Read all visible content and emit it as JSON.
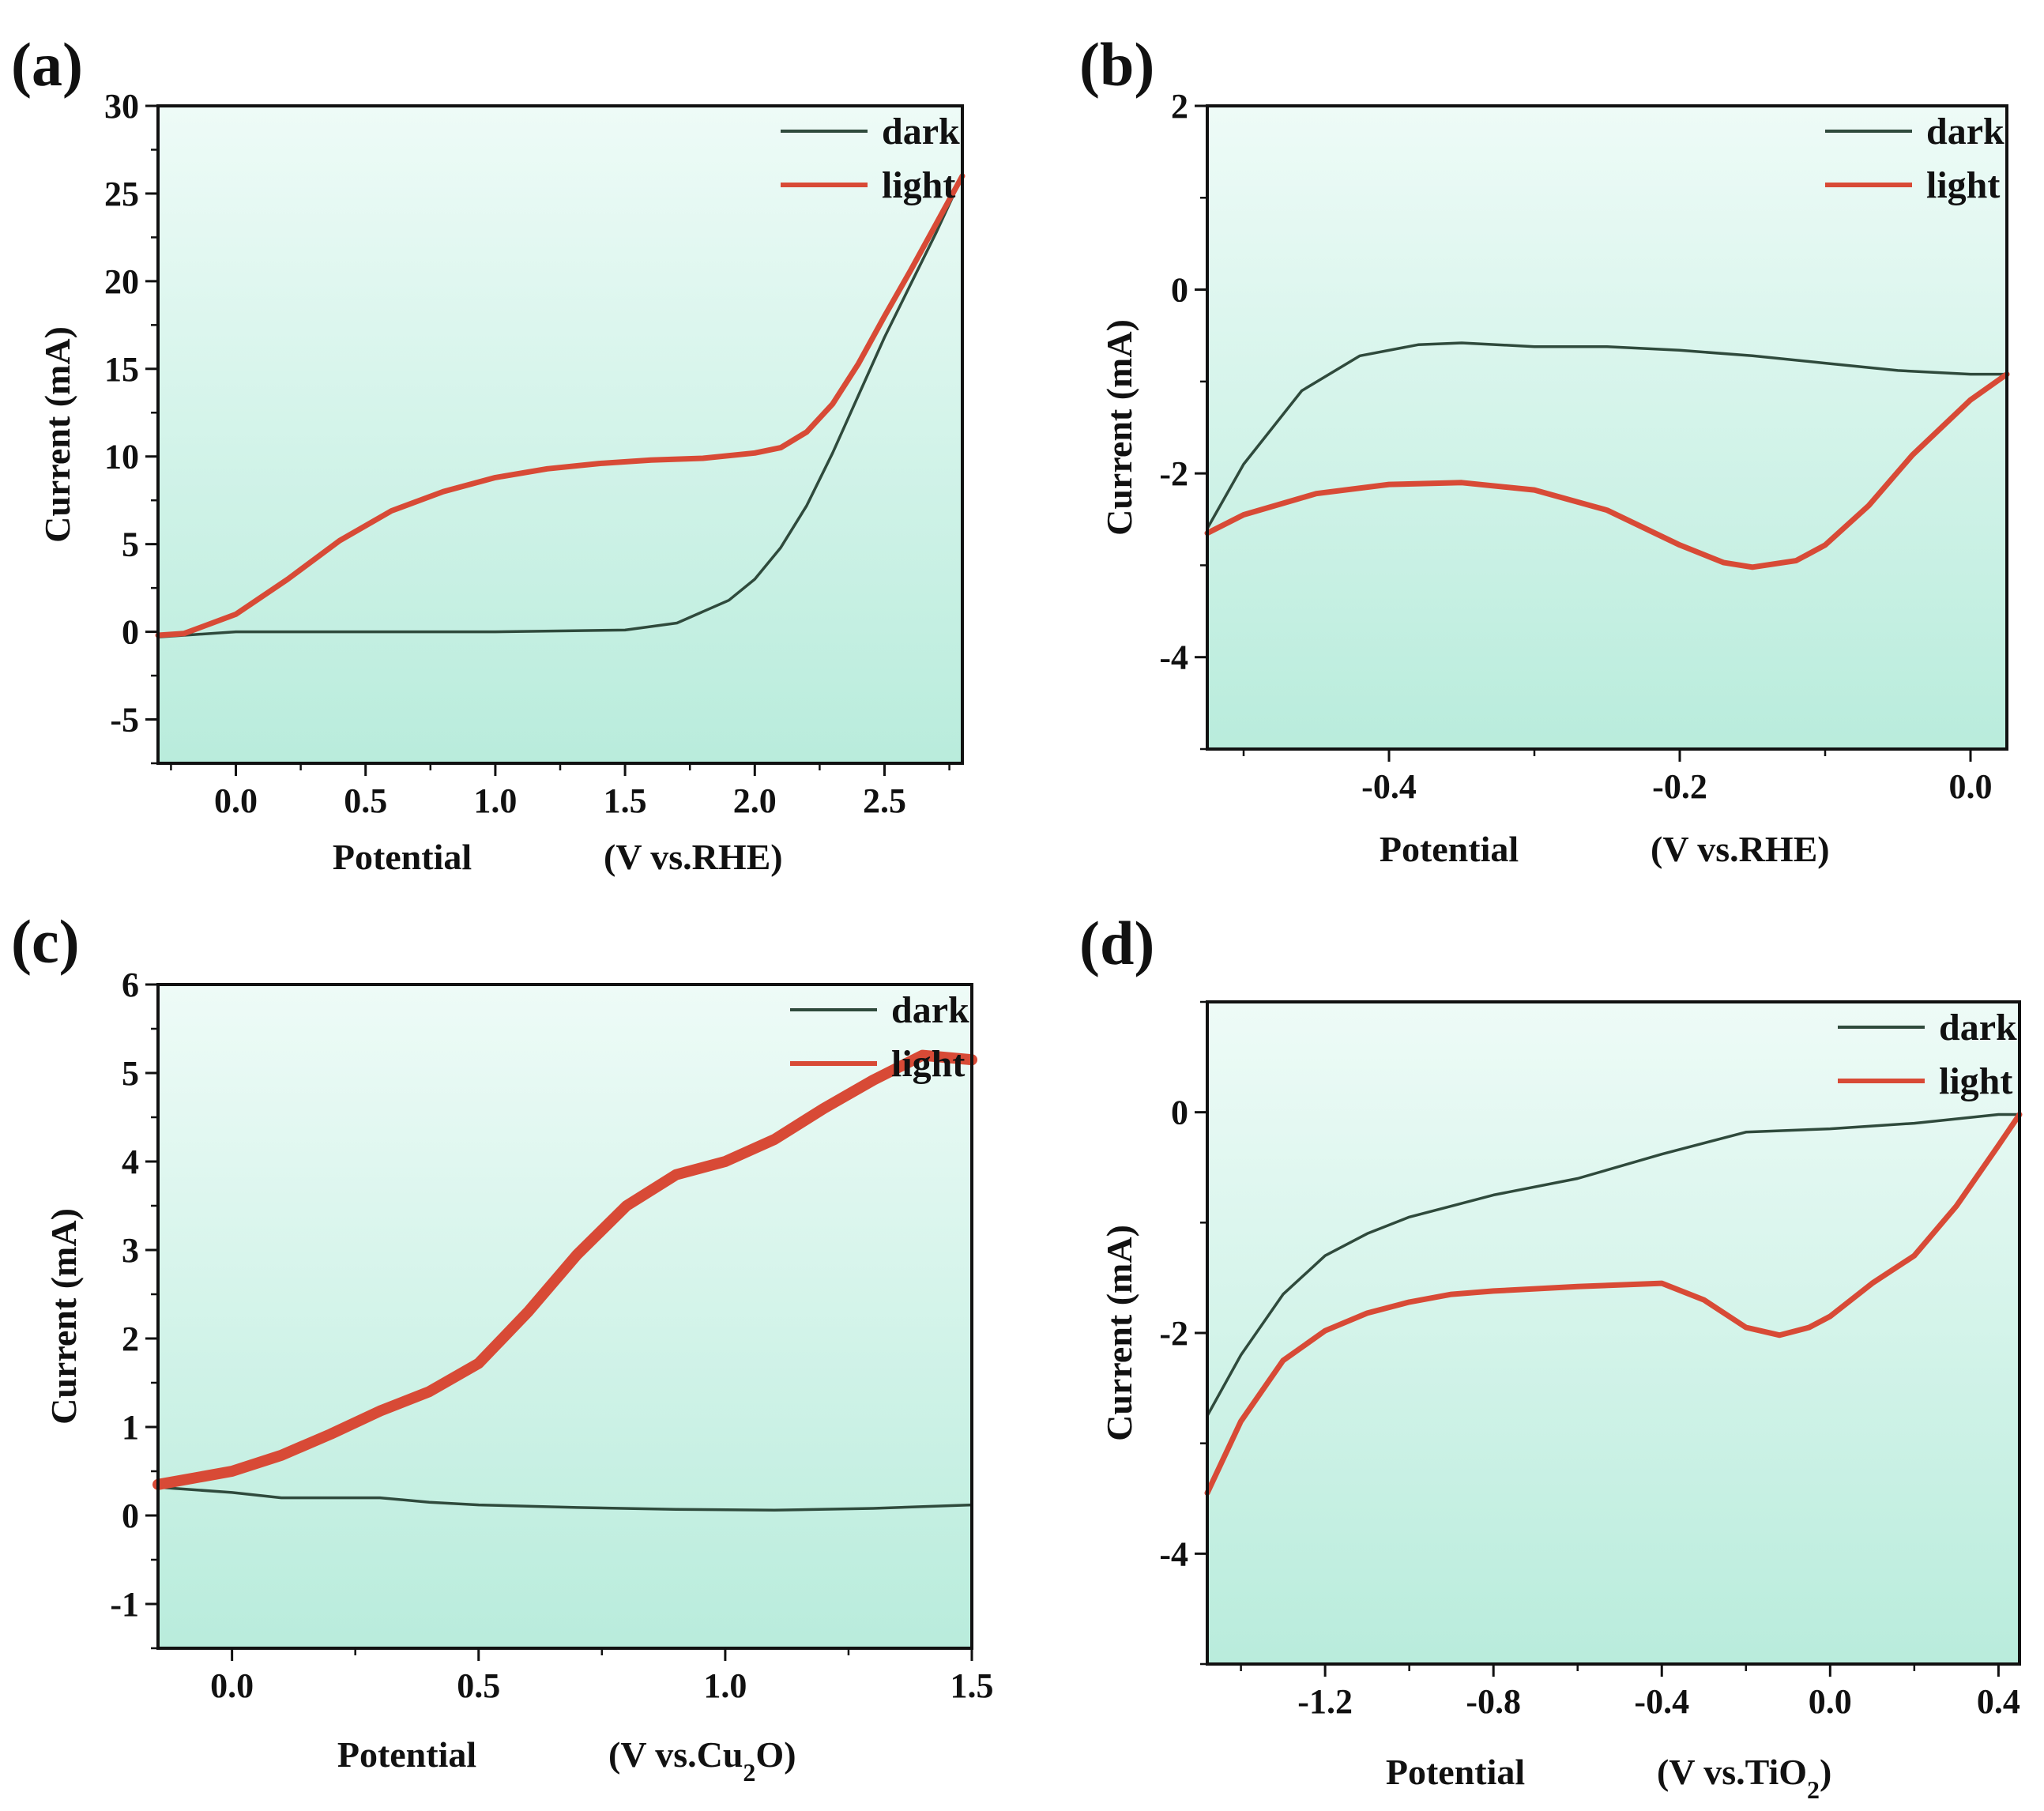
{
  "colors": {
    "dark": "#2f4a3c",
    "light": "#d84a36",
    "bg_top": "#eefbf7",
    "bg_bottom": "#b9ecdc",
    "axis": "#111111"
  },
  "chart_data": [
    {
      "panel": "(a)",
      "type": "line",
      "xlabel": "Potential",
      "xunit": "(V vs.RHE)",
      "ylabel": "Current (mA)",
      "xlim": [
        -0.3,
        2.8
      ],
      "ylim": [
        -7.5,
        30
      ],
      "xticks": [
        0.0,
        0.5,
        1.0,
        1.5,
        2.0,
        2.5
      ],
      "xtick_labels": [
        "0.0",
        "0.5",
        "1.0",
        "1.5",
        "2.0",
        "2.5"
      ],
      "yticks": [
        -5,
        0,
        5,
        10,
        15,
        20,
        25,
        30
      ],
      "ytick_labels": [
        "-5",
        "0",
        "5",
        "10",
        "15",
        "20",
        "25",
        "30"
      ],
      "legend": "top-right",
      "series": [
        {
          "name": "dark",
          "x": [
            -0.3,
            -0.2,
            0.0,
            0.5,
            1.0,
            1.5,
            1.7,
            1.9,
            2.0,
            2.1,
            2.2,
            2.3,
            2.4,
            2.5,
            2.6,
            2.7,
            2.8
          ],
          "y": [
            -0.3,
            -0.2,
            0.0,
            0.0,
            0.0,
            0.1,
            0.5,
            1.8,
            3.0,
            4.8,
            7.2,
            10.2,
            13.5,
            16.8,
            19.8,
            22.8,
            26.0
          ]
        },
        {
          "name": "light",
          "x": [
            -0.3,
            -0.2,
            0.0,
            0.2,
            0.4,
            0.6,
            0.8,
            1.0,
            1.2,
            1.4,
            1.6,
            1.8,
            2.0,
            2.1,
            2.2,
            2.3,
            2.4,
            2.5,
            2.6,
            2.7,
            2.8
          ],
          "y": [
            -0.2,
            -0.1,
            1.0,
            3.0,
            5.2,
            6.9,
            8.0,
            8.8,
            9.3,
            9.6,
            9.8,
            9.9,
            10.2,
            10.5,
            11.4,
            13.0,
            15.3,
            18.0,
            20.6,
            23.3,
            26.0
          ]
        }
      ]
    },
    {
      "panel": "(b)",
      "type": "line",
      "xlabel": "Potential",
      "xunit": "(V vs.RHE)",
      "ylabel": "Current (mA)",
      "xlim": [
        -0.525,
        0.025
      ],
      "ylim": [
        -5,
        2
      ],
      "xticks": [
        -0.4,
        -0.2,
        0.0
      ],
      "xtick_labels": [
        "-0.4",
        "-0.2",
        "0.0"
      ],
      "yticks": [
        -4,
        -2,
        0,
        2
      ],
      "ytick_labels": [
        "-4",
        "-2",
        "0",
        "2"
      ],
      "legend": "top-right",
      "series": [
        {
          "name": "dark",
          "x": [
            -0.525,
            -0.5,
            -0.46,
            -0.42,
            -0.38,
            -0.35,
            -0.3,
            -0.25,
            -0.2,
            -0.15,
            -0.1,
            -0.05,
            0.0,
            0.025
          ],
          "y": [
            -2.6,
            -1.9,
            -1.1,
            -0.72,
            -0.6,
            -0.58,
            -0.62,
            -0.62,
            -0.66,
            -0.72,
            -0.8,
            -0.88,
            -0.92,
            -0.92
          ]
        },
        {
          "name": "light",
          "x": [
            -0.525,
            -0.5,
            -0.45,
            -0.4,
            -0.35,
            -0.3,
            -0.25,
            -0.2,
            -0.17,
            -0.15,
            -0.12,
            -0.1,
            -0.07,
            -0.04,
            0.0,
            0.025
          ],
          "y": [
            -2.65,
            -2.45,
            -2.22,
            -2.12,
            -2.1,
            -2.18,
            -2.4,
            -2.78,
            -2.97,
            -3.02,
            -2.95,
            -2.78,
            -2.35,
            -1.8,
            -1.2,
            -0.92
          ]
        }
      ]
    },
    {
      "panel": "(c)",
      "type": "line",
      "xlabel": "Potential",
      "xunit": "(V vs.Cu2O)",
      "ylabel": "Current (mA)",
      "xlim": [
        -0.15,
        1.5
      ],
      "ylim": [
        -1.5,
        6
      ],
      "xticks": [
        0.0,
        0.5,
        1.0,
        1.5
      ],
      "xtick_labels": [
        "0.0",
        "0.5",
        "1.0",
        "1.5"
      ],
      "yticks": [
        -1,
        0,
        1,
        2,
        3,
        4,
        5,
        6
      ],
      "ytick_labels": [
        "-1",
        "0",
        "1",
        "2",
        "3",
        "4",
        "5",
        "6"
      ],
      "legend": "top-right",
      "series": [
        {
          "name": "dark",
          "x": [
            -0.15,
            0.0,
            0.1,
            0.2,
            0.3,
            0.4,
            0.5,
            0.7,
            0.9,
            1.1,
            1.3,
            1.5
          ],
          "y": [
            0.32,
            0.26,
            0.2,
            0.2,
            0.2,
            0.15,
            0.12,
            0.09,
            0.07,
            0.06,
            0.08,
            0.12
          ]
        },
        {
          "name": "light",
          "x": [
            -0.15,
            0.0,
            0.1,
            0.2,
            0.3,
            0.4,
            0.5,
            0.6,
            0.7,
            0.8,
            0.9,
            1.0,
            1.1,
            1.2,
            1.3,
            1.4,
            1.5
          ],
          "y": [
            0.35,
            0.5,
            0.68,
            0.92,
            1.18,
            1.4,
            1.72,
            2.3,
            2.95,
            3.5,
            3.85,
            4.0,
            4.25,
            4.6,
            4.92,
            5.2,
            5.15
          ]
        }
      ]
    },
    {
      "panel": "(d)",
      "type": "line",
      "xlabel": "Potential",
      "xunit": "(V vs.TiO2)",
      "ylabel": "Current (mA)",
      "xlim": [
        -1.48,
        0.45
      ],
      "ylim": [
        -5,
        1
      ],
      "xticks": [
        -1.2,
        -0.8,
        -0.4,
        0.0,
        0.4
      ],
      "xtick_labels": [
        "-1.2",
        "-0.8",
        "-0.4",
        "0.0",
        "0.4"
      ],
      "yticks": [
        -4,
        -2,
        0
      ],
      "ytick_labels": [
        "-4",
        "-2",
        "0"
      ],
      "legend": "top-right",
      "series": [
        {
          "name": "dark",
          "x": [
            -1.48,
            -1.4,
            -1.3,
            -1.2,
            -1.1,
            -1.0,
            -0.9,
            -0.8,
            -0.6,
            -0.4,
            -0.2,
            0.0,
            0.2,
            0.4,
            0.45
          ],
          "y": [
            -2.75,
            -2.2,
            -1.65,
            -1.3,
            -1.1,
            -0.95,
            -0.85,
            -0.75,
            -0.6,
            -0.38,
            -0.18,
            -0.15,
            -0.1,
            -0.02,
            -0.02
          ]
        },
        {
          "name": "light",
          "x": [
            -1.48,
            -1.4,
            -1.3,
            -1.2,
            -1.1,
            -1.0,
            -0.9,
            -0.8,
            -0.6,
            -0.4,
            -0.3,
            -0.2,
            -0.12,
            -0.05,
            0.0,
            0.1,
            0.2,
            0.3,
            0.4,
            0.45
          ],
          "y": [
            -3.45,
            -2.8,
            -2.25,
            -1.98,
            -1.82,
            -1.72,
            -1.65,
            -1.62,
            -1.58,
            -1.55,
            -1.7,
            -1.95,
            -2.02,
            -1.95,
            -1.85,
            -1.55,
            -1.3,
            -0.85,
            -0.3,
            -0.02
          ]
        }
      ]
    }
  ]
}
